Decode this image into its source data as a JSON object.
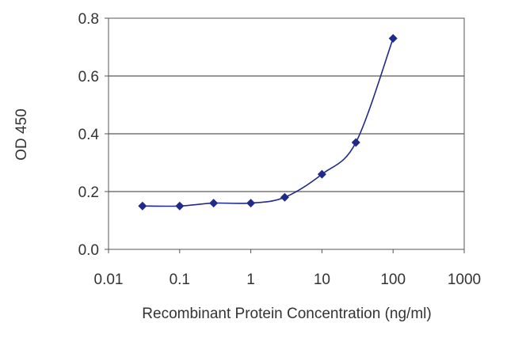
{
  "chart_data": {
    "type": "line",
    "xlabel": "Recombinant Protein Concentration (ng/ml)",
    "ylabel": "OD 450",
    "x_scale": "log",
    "xlim": [
      0.01,
      1000
    ],
    "ylim": [
      0.0,
      0.8
    ],
    "x_ticks": [
      0.01,
      0.1,
      1,
      10,
      100,
      1000
    ],
    "x_tick_labels": [
      "0.01",
      "0.1",
      "1",
      "10",
      "100",
      "1000"
    ],
    "y_ticks": [
      0.0,
      0.2,
      0.4,
      0.6,
      0.8
    ],
    "y_tick_labels": [
      "0.0",
      "0.2",
      "0.4",
      "0.6",
      "0.8"
    ],
    "grid": "horizontal",
    "series_color": "#1f2a8c",
    "series": [
      {
        "x": [
          0.03,
          0.1,
          0.3,
          1,
          3,
          10,
          30,
          100
        ],
        "y": [
          0.15,
          0.15,
          0.16,
          0.16,
          0.18,
          0.26,
          0.37,
          0.73
        ]
      }
    ]
  }
}
